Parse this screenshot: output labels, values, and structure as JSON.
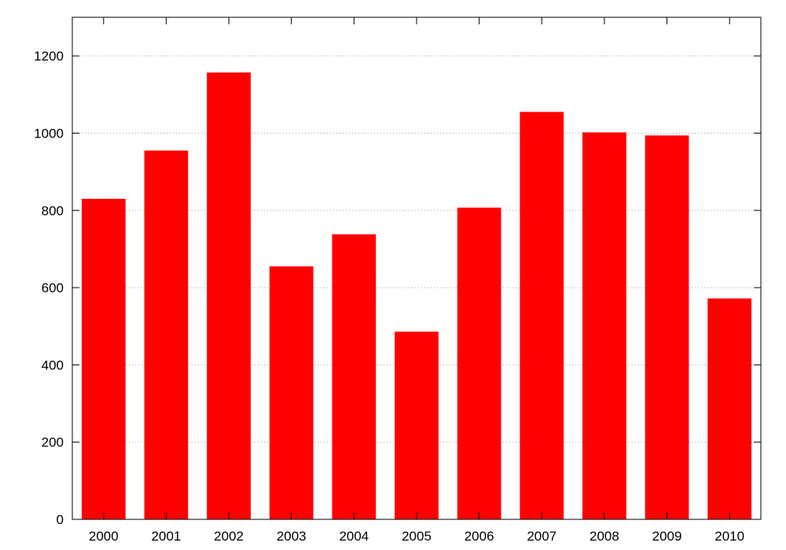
{
  "chart_data": {
    "type": "bar",
    "title": "",
    "xlabel": "",
    "ylabel": "",
    "categories": [
      "2000",
      "2001",
      "2002",
      "2003",
      "2004",
      "2005",
      "2006",
      "2007",
      "2008",
      "2009",
      "2010"
    ],
    "values": [
      830,
      955,
      1157,
      655,
      738,
      486,
      807,
      1055,
      1002,
      994,
      572
    ],
    "ylim": [
      0,
      1300
    ],
    "yticks": [
      0,
      200,
      400,
      600,
      800,
      1000,
      1200
    ],
    "ytick_labels": [
      "0",
      "200",
      "400",
      "600",
      "800",
      "1000",
      "1200"
    ],
    "grid": true,
    "legend": "none",
    "bar_color": "#ff0000"
  }
}
